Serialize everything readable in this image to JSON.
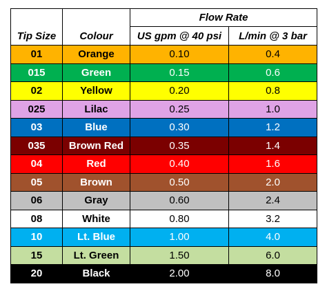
{
  "table": {
    "header": {
      "tip_size": "Tip Size",
      "colour": "Colour",
      "flow_rate": "Flow Rate",
      "gpm": "US gpm @ 40 psi",
      "lmin": "L/min @ 3 bar"
    },
    "rows": [
      {
        "cells": [
          "01",
          "Orange",
          "0.10",
          "0.4"
        ],
        "fill": "#ffb300",
        "ink": "#000000"
      },
      {
        "cells": [
          "015",
          "Green",
          "0.15",
          "0.6"
        ],
        "fill": "#00b050",
        "ink": "#ffffff"
      },
      {
        "cells": [
          "02",
          "Yellow",
          "0.20",
          "0.8"
        ],
        "fill": "#ffff00",
        "ink": "#000000"
      },
      {
        "cells": [
          "025",
          "Lilac",
          "0.25",
          "1.0"
        ],
        "fill": "#dfa3e6",
        "ink": "#000000"
      },
      {
        "cells": [
          "03",
          "Blue",
          "0.30",
          "1.2"
        ],
        "fill": "#0070c0",
        "ink": "#ffffff"
      },
      {
        "cells": [
          "035",
          "Brown Red",
          "0.35",
          "1.4"
        ],
        "fill": "#7b0000",
        "ink": "#ffffff"
      },
      {
        "cells": [
          "04",
          "Red",
          "0.40",
          "1.6"
        ],
        "fill": "#ff0000",
        "ink": "#ffffff"
      },
      {
        "cells": [
          "05",
          "Brown",
          "0.50",
          "2.0"
        ],
        "fill": "#a0522d",
        "ink": "#ffffff"
      },
      {
        "cells": [
          "06",
          "Gray",
          "0.60",
          "2.4"
        ],
        "fill": "#c0c0c0",
        "ink": "#000000"
      },
      {
        "cells": [
          "08",
          "White",
          "0.80",
          "3.2"
        ],
        "fill": "#ffffff",
        "ink": "#000000"
      },
      {
        "cells": [
          "10",
          "Lt. Blue",
          "1.00",
          "4.0"
        ],
        "fill": "#00b0f0",
        "ink": "#ffffff"
      },
      {
        "cells": [
          "15",
          "Lt. Green",
          "1.50",
          "6.0"
        ],
        "fill": "#c4dea0",
        "ink": "#000000"
      },
      {
        "cells": [
          "20",
          "Black",
          "2.00",
          "8.0"
        ],
        "fill": "#000000",
        "ink": "#ffffff"
      }
    ]
  }
}
